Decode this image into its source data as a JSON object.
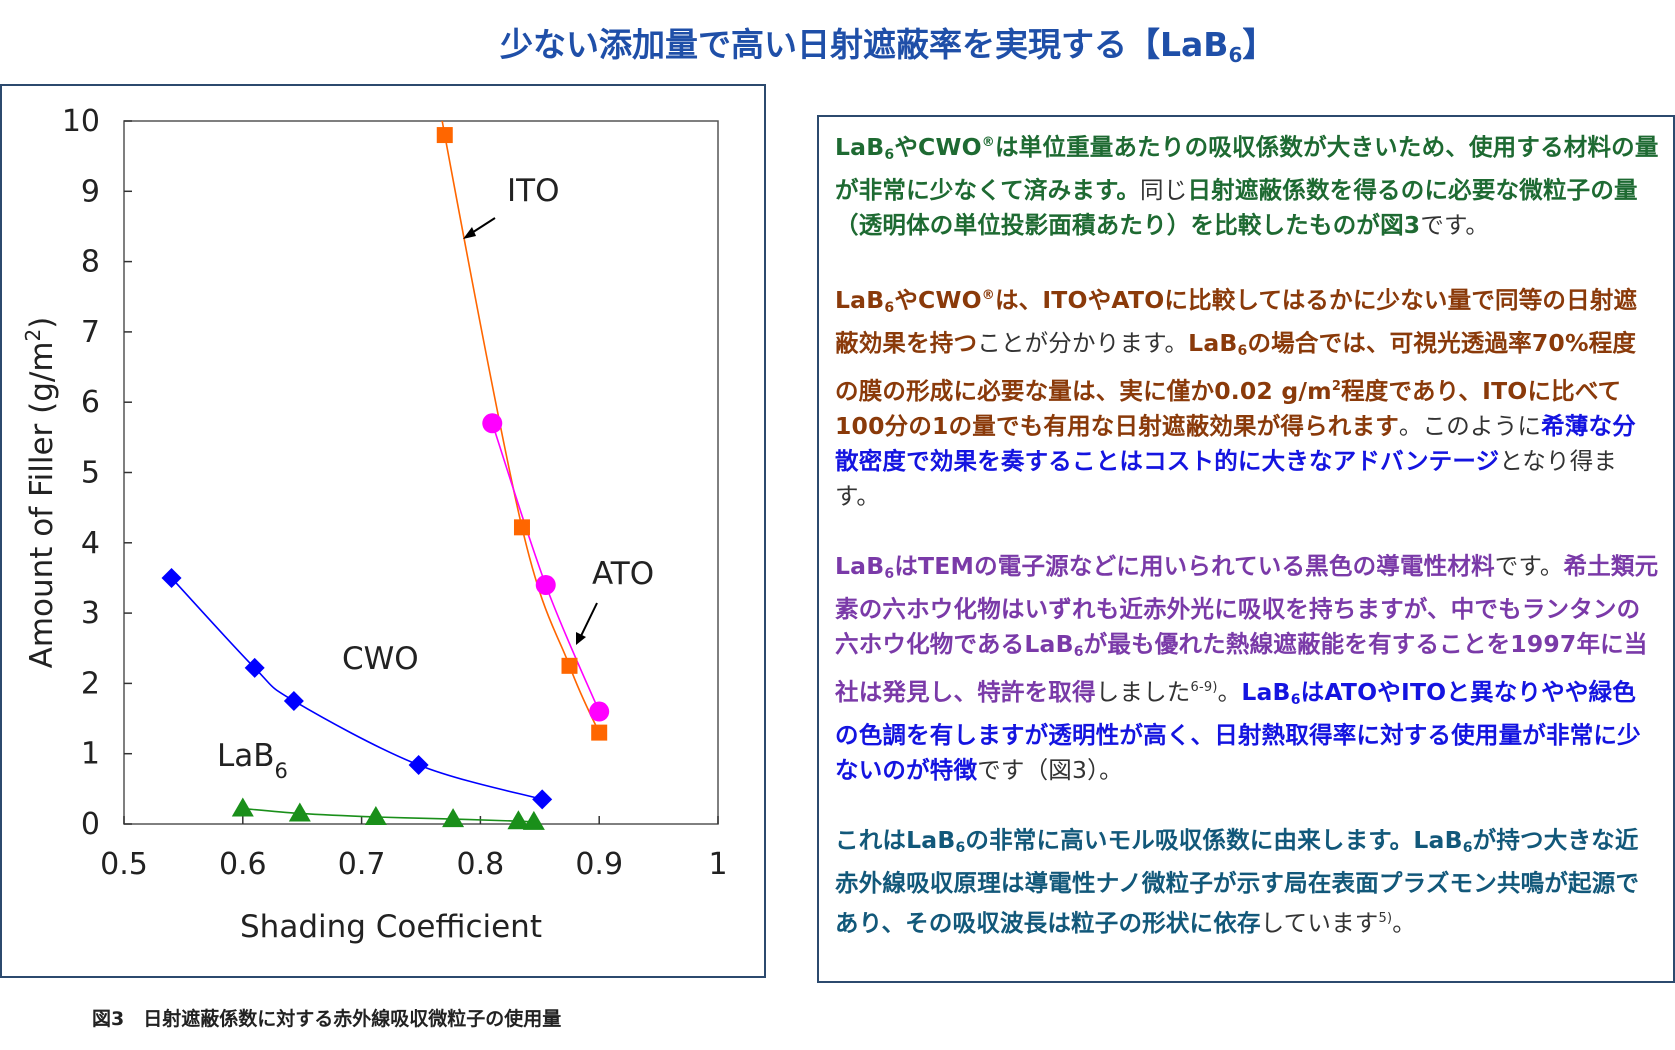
{
  "title": {
    "main": "少ない添加量で高い日射遮蔽率を実現する【LaB",
    "sub": "6",
    "close": "】"
  },
  "caption": "図3　日射遮蔽係数に対する赤外線吸収微粒子の使用量",
  "colors": {
    "ito": "#ff6600",
    "ato": "#ff00ff",
    "cwo": "#0000ff",
    "lab6": "#1a8f1a",
    "title": "#1f4fa8",
    "frame": "#2c4a6e"
  },
  "chart_data": {
    "type": "scatter",
    "xlabel": "Shading Coefficient",
    "ylabel": "Amount of Filler (g/m",
    "ylabel_sup": "2",
    "ylabel_close": ")",
    "xlim": [
      0.5,
      1.0
    ],
    "ylim": [
      0,
      10
    ],
    "x_ticks": [
      "0.5",
      "0.6",
      "0.7",
      "0.8",
      "0.9",
      "1"
    ],
    "y_ticks": [
      "0",
      "1",
      "2",
      "3",
      "4",
      "5",
      "6",
      "7",
      "8",
      "9",
      "10"
    ],
    "grid": false,
    "series": [
      {
        "name": "ITO",
        "marker": "square",
        "color": "#ff6600",
        "x": [
          0.77,
          0.835,
          0.875,
          0.9
        ],
        "y": [
          9.8,
          4.22,
          2.25,
          1.3
        ]
      },
      {
        "name": "ATO",
        "marker": "circle",
        "color": "#ff00ff",
        "x": [
          0.81,
          0.855,
          0.9
        ],
        "y": [
          5.7,
          3.4,
          1.6
        ]
      },
      {
        "name": "CWO",
        "marker": "diamond",
        "color": "#0000ff",
        "x": [
          0.54,
          0.61,
          0.643,
          0.748,
          0.852
        ],
        "y": [
          3.5,
          2.22,
          1.75,
          0.84,
          0.35
        ]
      },
      {
        "name": "LaB",
        "name_sub": "6",
        "marker": "triangle",
        "color": "#1a8f1a",
        "x": [
          0.6,
          0.648,
          0.712,
          0.777,
          0.832,
          0.845
        ],
        "y": [
          0.22,
          0.15,
          0.1,
          0.07,
          0.04,
          0.03
        ]
      }
    ]
  },
  "text": {
    "p1": {
      "a": "LaB",
      "a_sub": "6",
      "b": "やCWO",
      "b_sup": "®",
      "c": "は単位重量あたりの吸収係数が大きいため、使用する材料の量が非常に少なくて済みます。",
      "d": "同じ",
      "e": "日射遮蔽係数を得るのに必要な微粒子の量（透明体の単位投影面積あたり）を比較したものが図3",
      "f": "です。"
    },
    "p2": {
      "a": "LaB",
      "a_sub": "6",
      "b": "やCWO",
      "b_sup": "®",
      "c": "は、ITOやATOに比較してはるかに少ない量で同等の日射遮蔽効果を持つ",
      "d": "ことが分かります。",
      "e": "LaB",
      "e_sub": "6",
      "f": "の場合では、可視光透過率70%程度の膜の形成に必要な量は、実に僅か0.02 g/m",
      "f_sup": "2",
      "g": "程度であり、ITOに比べて100分の1の量でも有用な日射遮蔽効果が得られます",
      "h": "。このように",
      "i": "希薄な分散密度で効果を奏することはコスト的に大きなアドバンテージ",
      "j": "となり得ます。"
    },
    "p3": {
      "a": "LaB",
      "a_sub": "6",
      "b": "はTEMの電子源などに用いられている黒色の導電性材料",
      "c": "です。",
      "d": "希土類元素の六ホウ化物はいずれも近赤外光に吸収を持ちますが、中でもランタンの六ホウ化物であるLaB",
      "d_sub": "6",
      "e": "が最も優れた熱線遮蔽能を有することを1997年に当社は発見し、特許を取得",
      "f": "しました",
      "f_sup": "6-9)",
      "g": "。",
      "h": "LaB",
      "h_sub": "6",
      "i": "はATOやITOと異なりやや緑色の色調を有しますが透明性が高く、日射熱取得率に対する使用量が非常に少ないのが特徴",
      "j": "です（図3）。"
    },
    "p4": {
      "a": "これはLaB",
      "a_sub": "6",
      "b": "の非常に高いモル吸収係数に由来します。LaB",
      "b_sub": "6",
      "c": "が持つ大きな近赤外線吸収原理は導電性ナノ微粒子が示す局在表面プラズモン共鳴が起源であり、その吸収波長は粒子の形状に依存",
      "d": "しています",
      "d_sup": "5)",
      "e": "。"
    }
  }
}
